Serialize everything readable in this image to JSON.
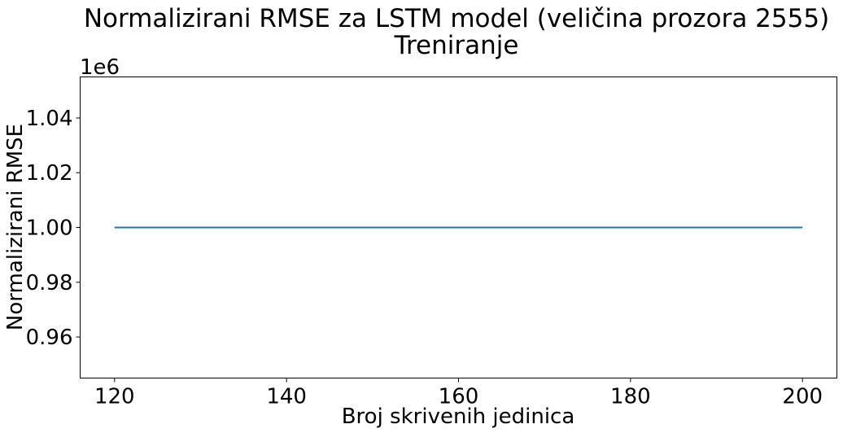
{
  "chart_data": {
    "type": "line",
    "title_lines": [
      "Normalizirani RMSE za LSTM model (veličina prozora 2555)",
      "Treniranje"
    ],
    "xlabel": "Broj skrivenih jedinica",
    "ylabel": "Normalizirani RMSE",
    "y_offset_label": "1e6",
    "x_ticks": [
      120,
      140,
      160,
      180,
      200
    ],
    "x_tick_labels": [
      "120",
      "140",
      "160",
      "180",
      "200"
    ],
    "y_ticks": [
      0.96,
      0.98,
      1.0,
      1.02,
      1.04
    ],
    "y_tick_labels": [
      "0.96",
      "0.98",
      "1.00",
      "1.02",
      "1.04"
    ],
    "xlim": [
      116,
      204
    ],
    "ylim": [
      0.945,
      1.055
    ],
    "grid": false,
    "series": [
      {
        "color": "#1f77b4",
        "x": [
          120,
          200
        ],
        "y": [
          1.0,
          1.0
        ]
      }
    ]
  }
}
